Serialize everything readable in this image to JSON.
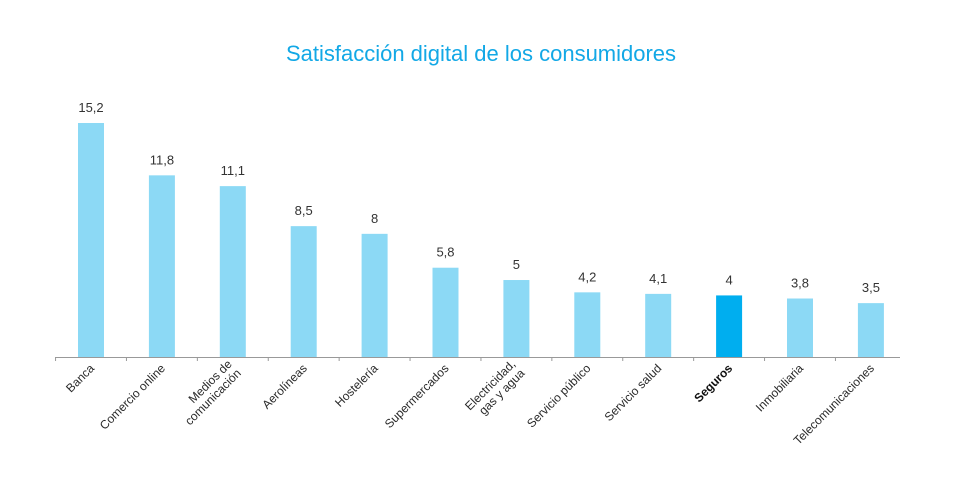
{
  "chart_data": {
    "type": "bar",
    "title": "Satisfacción digital de los consumidores",
    "xlabel": "",
    "ylabel": "",
    "ylim": [
      0,
      15.2
    ],
    "grid": false,
    "categories": [
      [
        "Banca"
      ],
      [
        "Comercio online"
      ],
      [
        "Medios de",
        "comunicación"
      ],
      [
        "Aerolíneas"
      ],
      [
        "Hostelería"
      ],
      [
        "Supermercados"
      ],
      [
        "Electricidad,",
        "gas y agua"
      ],
      [
        "Servicio público"
      ],
      [
        "Servicio salud"
      ],
      [
        "Seguros"
      ],
      [
        "Inmobiliaria"
      ],
      [
        "Telecomunicaciones"
      ]
    ],
    "values": [
      15.2,
      11.8,
      11.1,
      8.5,
      8,
      5.8,
      5,
      4.2,
      4.1,
      4,
      3.8,
      3.5
    ],
    "value_labels": [
      "15,2",
      "11,8",
      "11,1",
      "8,5",
      "8",
      "5,8",
      "5",
      "4,2",
      "4,1",
      "4",
      "3,8",
      "3,5"
    ],
    "highlight_index": 9,
    "colors": {
      "bar": "#8cd9f5",
      "highlight": "#00aeef",
      "title": "#12a8e6",
      "axis": "#999999"
    }
  }
}
